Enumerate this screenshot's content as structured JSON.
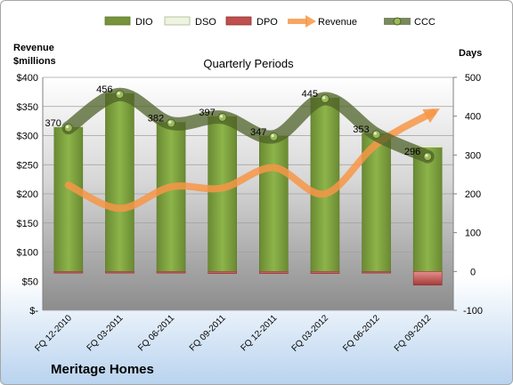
{
  "company": "Meritage Homes",
  "chart_data": {
    "type": "bar",
    "title": "Quarterly Periods",
    "left_axis_label": "Revenue\n$millions",
    "right_axis_label": "Days",
    "left_ylim": [
      0,
      400
    ],
    "left_ticks": [
      "$-",
      "$50",
      "$100",
      "$150",
      "$200",
      "$250",
      "$300",
      "$350",
      "$400"
    ],
    "right_ylim": [
      -100,
      500
    ],
    "right_ticks": [
      "-100",
      "0",
      "100",
      "200",
      "300",
      "400",
      "500"
    ],
    "categories": [
      "FQ 12-2010",
      "FQ 03-2011",
      "FQ 06-2011",
      "FQ 09-2011",
      "FQ 12-2011",
      "FQ 03-2012",
      "FQ 06-2012",
      "FQ 09-2012"
    ],
    "legend_position": "top",
    "series": [
      {
        "name": "DIO",
        "type": "bar",
        "axis": "right",
        "color": "#77933c",
        "values": [
          372,
          459,
          385,
          400,
          350,
          448,
          356,
          320
        ]
      },
      {
        "name": "DSO",
        "type": "bar",
        "axis": "right",
        "color": "#eef3e2",
        "values": [
          2,
          2,
          2,
          2,
          2,
          2,
          2,
          2
        ]
      },
      {
        "name": "DPO",
        "type": "bar",
        "axis": "right",
        "color": "#c0504d",
        "values": [
          -4,
          -4,
          -4,
          -5,
          -5,
          -5,
          -4,
          -35
        ]
      },
      {
        "name": "Revenue",
        "type": "line",
        "axis": "left",
        "color": "#f79646",
        "values": [
          215,
          175,
          212,
          210,
          245,
          200,
          285,
          340
        ]
      },
      {
        "name": "CCC",
        "type": "line",
        "axis": "right",
        "color": "#4f6228",
        "values": [
          370,
          456,
          382,
          397,
          347,
          445,
          353,
          296
        ],
        "labels": [
          "370",
          "456",
          "382",
          "397",
          "347",
          "445",
          "353",
          "296"
        ]
      }
    ]
  }
}
